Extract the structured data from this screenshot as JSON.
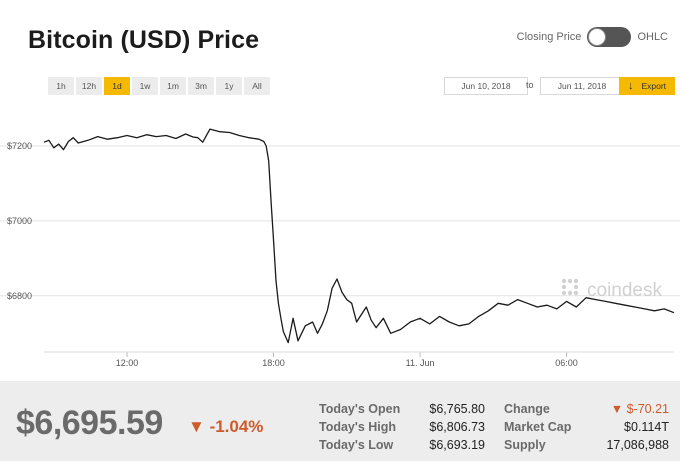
{
  "header": {
    "title": "Bitcoin (USD) Price",
    "toggle_left": "Closing Price",
    "toggle_right": "OHLC"
  },
  "range_buttons": [
    "1h",
    "12h",
    "1d",
    "1w",
    "1m",
    "3m",
    "1y",
    "All"
  ],
  "active_range": "1d",
  "date_from": "Jun 10, 2018",
  "date_to_label": "to",
  "date_to": "Jun 11, 2018",
  "export_label": "Export",
  "watermark": "coindesk",
  "chart_data": {
    "type": "line",
    "title": "",
    "xlabel": "",
    "ylabel": "",
    "x_ticks": [
      "12:00",
      "18:00",
      "11. Jun",
      "06:00"
    ],
    "y_ticks": [
      "$7200",
      "$7000",
      "$6800"
    ],
    "y_tick_values": [
      7200,
      7000,
      6800
    ],
    "xlim": [
      8.6,
      34.4
    ],
    "ylim": [
      6650,
      7280
    ],
    "grid": true,
    "series": [
      {
        "x": [
          8.6,
          8.8,
          9.0,
          9.2,
          9.4,
          9.6,
          9.8,
          10.0,
          10.4,
          10.8,
          11.2,
          11.6,
          12.0,
          12.4,
          12.8,
          13.2,
          13.6,
          14.0,
          14.4,
          14.7,
          14.9,
          15.1,
          15.4,
          15.8,
          16.2,
          16.6,
          17.0,
          17.4,
          17.6,
          17.7,
          17.8,
          17.9,
          18.0,
          18.1,
          18.2,
          18.3,
          18.4,
          18.5,
          18.6,
          18.8,
          19.0,
          19.3,
          19.6,
          19.8,
          20.0,
          20.2,
          20.4,
          20.6,
          20.8,
          21.0,
          21.2,
          21.4,
          21.6,
          21.8,
          22.0,
          22.2,
          22.5,
          22.8,
          23.2,
          23.6,
          24.0,
          24.4,
          24.8,
          25.2,
          25.6,
          26.0,
          26.4,
          26.8,
          27.2,
          27.6,
          28.0,
          28.4,
          28.8,
          29.2,
          29.6,
          30.0,
          30.4,
          30.8,
          31.2,
          31.6,
          32.0,
          32.4,
          32.8,
          33.2,
          33.6,
          34.0,
          34.4
        ],
        "values": [
          7210,
          7215,
          7195,
          7205,
          7190,
          7212,
          7222,
          7208,
          7215,
          7225,
          7218,
          7222,
          7228,
          7222,
          7230,
          7225,
          7228,
          7220,
          7232,
          7224,
          7222,
          7210,
          7245,
          7238,
          7236,
          7228,
          7222,
          7218,
          7212,
          7200,
          7160,
          7050,
          6950,
          6840,
          6780,
          6740,
          6705,
          6690,
          6675,
          6740,
          6680,
          6720,
          6730,
          6700,
          6725,
          6760,
          6820,
          6845,
          6810,
          6790,
          6780,
          6730,
          6750,
          6770,
          6735,
          6715,
          6740,
          6700,
          6710,
          6730,
          6740,
          6725,
          6745,
          6730,
          6720,
          6725,
          6745,
          6760,
          6780,
          6775,
          6790,
          6780,
          6770,
          6775,
          6765,
          6785,
          6770,
          6795,
          6790,
          6785,
          6780,
          6775,
          6770,
          6765,
          6760,
          6765,
          6755
        ]
      }
    ]
  },
  "footer": {
    "price": "$6,695.59",
    "change_pct": "-1.04%",
    "stats": [
      {
        "label": "Today's Open",
        "value": "$6,765.80"
      },
      {
        "label": "Today's High",
        "value": "$6,806.73"
      },
      {
        "label": "Today's Low",
        "value": "$6,693.19"
      }
    ],
    "stats2": [
      {
        "label": "Change",
        "value": "$-70.21"
      },
      {
        "label": "Market Cap",
        "value": "$0.114T"
      },
      {
        "label": "Supply",
        "value": "17,086,988"
      }
    ]
  },
  "colors": {
    "accent": "#f5b901",
    "negative": "#cf5a2a",
    "line": "#1a1a1a",
    "grid": "#e3e3e3",
    "footer_bg": "#ededed"
  }
}
